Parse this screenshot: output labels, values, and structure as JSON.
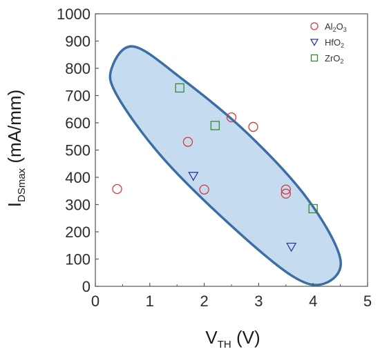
{
  "chart_data": {
    "type": "scatter",
    "x_axis": {
      "label_main": "V",
      "label_sub": "TH",
      "label_unit": " (V)",
      "range": [
        0,
        5
      ],
      "ticks": [
        0,
        1,
        2,
        3,
        4,
        5
      ]
    },
    "y_axis": {
      "label_main": "I",
      "label_sub": "DSmax",
      "label_unit": " (mA/mm)",
      "range": [
        0,
        1000
      ],
      "ticks": [
        0,
        100,
        200,
        300,
        400,
        500,
        600,
        700,
        800,
        900,
        1000
      ]
    },
    "grid": false,
    "legend_position": "top-right",
    "series": [
      {
        "name_parts": [
          "Al",
          "2",
          "O",
          "3"
        ],
        "marker": "circle",
        "color": "#d9363e",
        "points": [
          [
            0.4,
            357
          ],
          [
            1.7,
            530
          ],
          [
            2.0,
            355
          ],
          [
            2.5,
            620
          ],
          [
            2.9,
            585
          ],
          [
            3.5,
            355
          ],
          [
            3.5,
            340
          ]
        ]
      },
      {
        "name_parts": [
          "HfO",
          "2"
        ],
        "marker": "triangle-down",
        "color": "#2a3aa0",
        "points": [
          [
            1.8,
            405
          ],
          [
            3.6,
            145
          ]
        ]
      },
      {
        "name_parts": [
          "ZrO",
          "2"
        ],
        "marker": "square",
        "color": "#2e8b2e",
        "points": [
          [
            1.55,
            728
          ],
          [
            2.2,
            590
          ],
          [
            4.0,
            285
          ]
        ]
      }
    ],
    "annotation": {
      "shape": "ellipse",
      "fill": "#c5dcf0",
      "stroke": "#3b6ea3",
      "path_points": [
        [
          0.3,
          800
        ],
        [
          0.7,
          880
        ],
        [
          1.6,
          760
        ],
        [
          2.8,
          560
        ],
        [
          3.9,
          320
        ],
        [
          4.5,
          100
        ],
        [
          4.2,
          10
        ],
        [
          3.6,
          40
        ],
        [
          2.4,
          240
        ],
        [
          1.2,
          480
        ],
        [
          0.4,
          700
        ]
      ]
    }
  }
}
